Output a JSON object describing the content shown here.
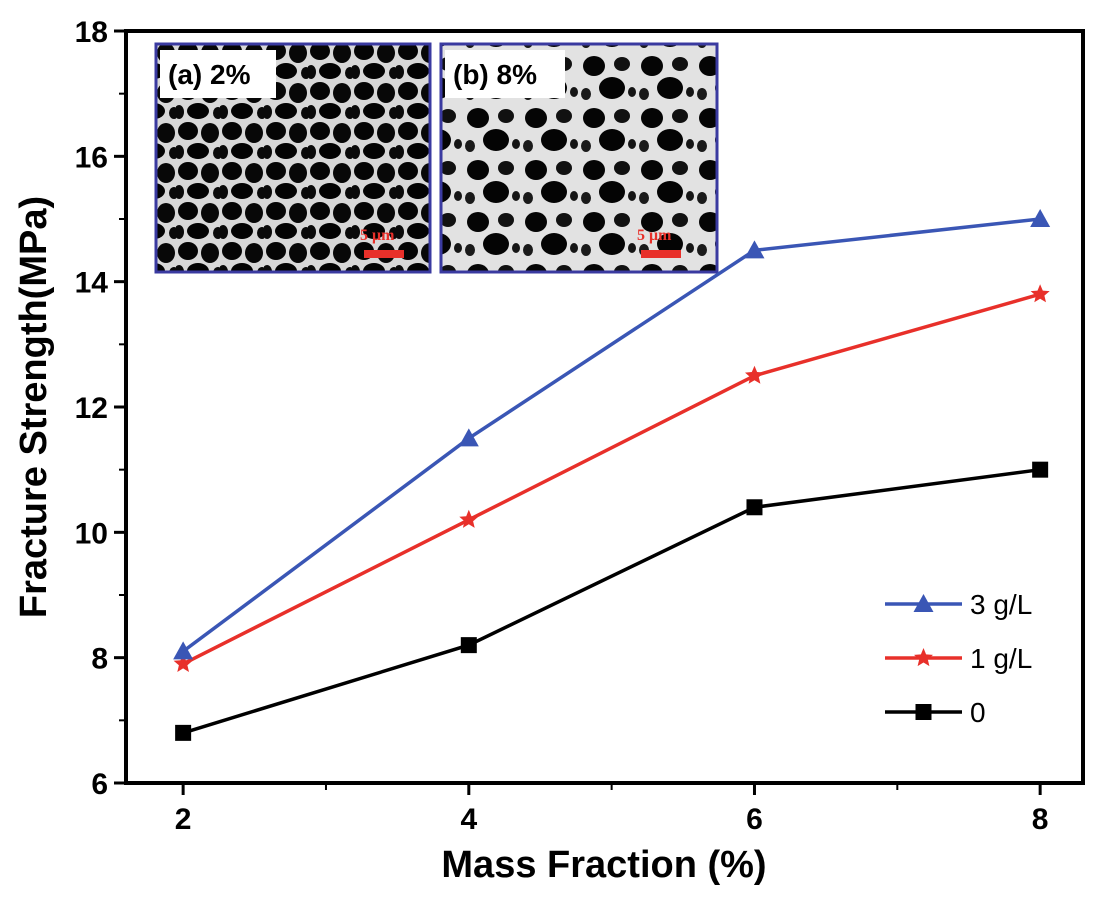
{
  "chart_data": {
    "type": "line",
    "xlabel": "Mass Fraction (%)",
    "ylabel": "Fracture Strength(MPa)",
    "xlim": [
      1.6,
      8.3
    ],
    "ylim": [
      6,
      18
    ],
    "xticks": [
      2,
      4,
      6,
      8
    ],
    "yticks": [
      6,
      8,
      10,
      12,
      14,
      16,
      18
    ],
    "x": [
      2,
      4,
      6,
      8
    ],
    "grid": false,
    "legend_position": "bottom-right",
    "series": [
      {
        "name": "3 g/L",
        "color": "#3a56b5",
        "marker": "triangle",
        "values": [
          8.1,
          11.5,
          14.5,
          15.0
        ]
      },
      {
        "name": "1 g/L",
        "color": "#e8302a",
        "marker": "star",
        "values": [
          7.9,
          10.2,
          12.5,
          13.8
        ]
      },
      {
        "name": "0",
        "color": "#000000",
        "marker": "square",
        "values": [
          6.8,
          8.2,
          10.4,
          11.0
        ]
      }
    ],
    "insets": [
      {
        "label": "(a) 2%",
        "scale_bar": "5 μm",
        "border_color": "#3a3aa0",
        "scale_color": "#e8302a"
      },
      {
        "label": "(b) 8%",
        "scale_bar": "5 μm",
        "border_color": "#3a3aa0",
        "scale_color": "#e8302a"
      }
    ]
  }
}
